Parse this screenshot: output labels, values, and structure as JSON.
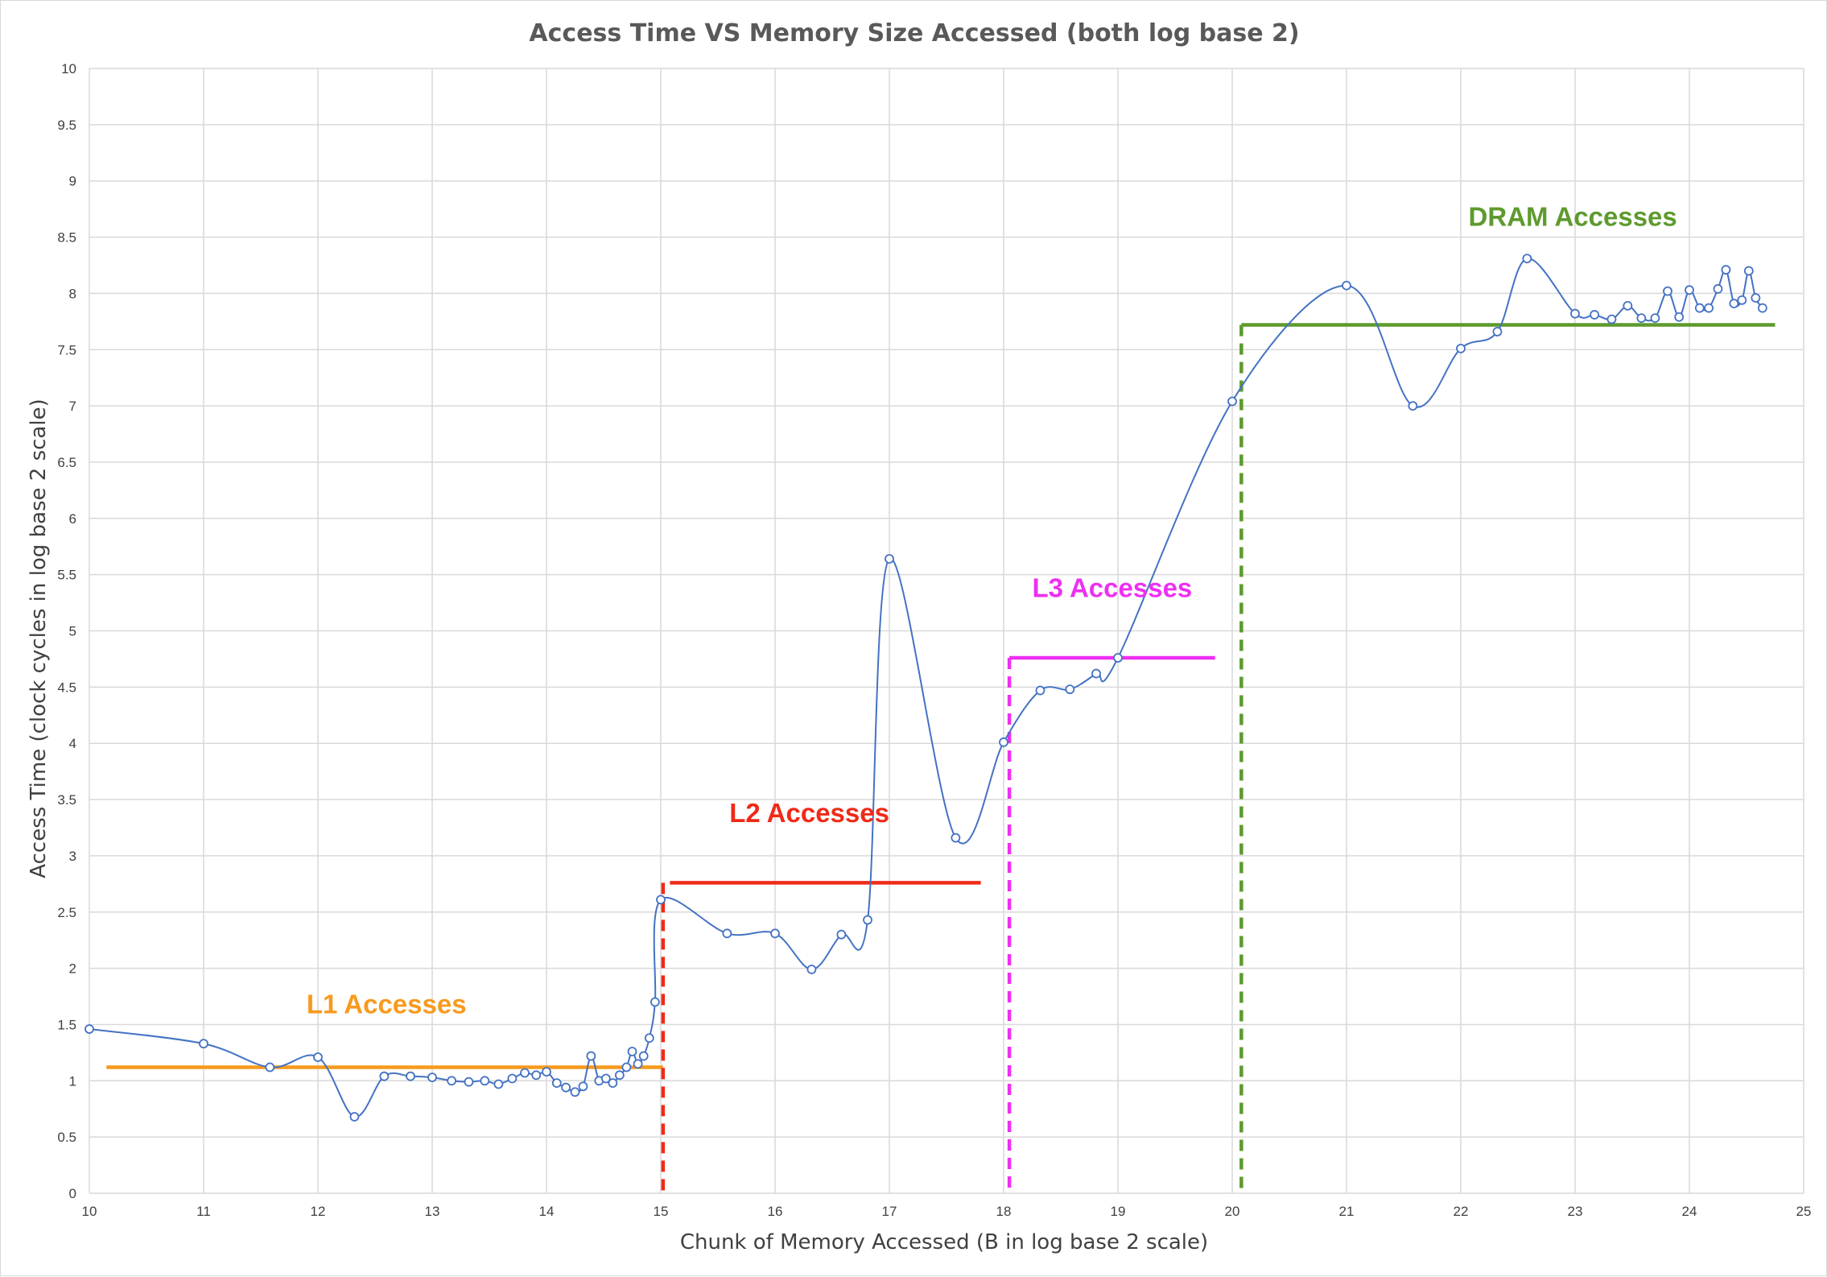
{
  "chart_data": {
    "type": "scatter",
    "title": "Access Time VS Memory Size Accessed (both log base 2)",
    "xlabel": "Chunk of Memory Accessed  (B in log base 2 scale)",
    "ylabel": "Access Time (clock cycles in log base 2 scale)",
    "xlim": [
      10,
      25
    ],
    "ylim": [
      0,
      10
    ],
    "x_ticks": [
      10,
      11,
      12,
      13,
      14,
      15,
      16,
      17,
      18,
      19,
      20,
      21,
      22,
      23,
      24,
      25
    ],
    "y_ticks": [
      0,
      0.5,
      1,
      1.5,
      2,
      2.5,
      3,
      3.5,
      4,
      4.5,
      5,
      5.5,
      6,
      6.5,
      7,
      7.5,
      8,
      8.5,
      9,
      9.5,
      10
    ],
    "y_tick_labels": [
      "0",
      "0.5",
      "1",
      "1.5",
      "2",
      "2.5",
      "3",
      "3.5",
      "4",
      "4.5",
      "5",
      "5.5",
      "6",
      "6.5",
      "7",
      "7.5",
      "8",
      "8.5",
      "9",
      "9.5",
      "10"
    ],
    "grid": true,
    "series": [
      {
        "color": "#4472c4",
        "style": "smooth line with hollow circle markers",
        "x": [
          10,
          11,
          11.58,
          12,
          12.32,
          12.58,
          12.81,
          13,
          13.17,
          13.32,
          13.46,
          13.58,
          13.7,
          13.81,
          13.91,
          14,
          14.09,
          14.17,
          14.25,
          14.32,
          14.39,
          14.46,
          14.52,
          14.58,
          14.64,
          14.7,
          14.75,
          14.8,
          14.85,
          14.9,
          14.95,
          15,
          15.58,
          16,
          16.32,
          16.58,
          16.81,
          17,
          17.58,
          18,
          18.32,
          18.58,
          18.81,
          19,
          20,
          21,
          21.58,
          22,
          22.32,
          22.58,
          23,
          23.17,
          23.32,
          23.46,
          23.58,
          23.7,
          23.81,
          23.91,
          24,
          24.09,
          24.17,
          24.25,
          24.32,
          24.39,
          24.46,
          24.52,
          24.58,
          24.64
        ],
        "y": [
          1.46,
          1.33,
          1.12,
          1.21,
          0.68,
          1.04,
          1.04,
          1.03,
          1.0,
          0.99,
          1.0,
          0.97,
          1.02,
          1.07,
          1.05,
          1.08,
          0.98,
          0.94,
          0.9,
          0.95,
          1.22,
          1.0,
          1.02,
          0.98,
          1.05,
          1.12,
          1.26,
          1.15,
          1.22,
          1.38,
          1.7,
          2.61,
          2.31,
          2.31,
          1.99,
          2.3,
          2.43,
          5.64,
          3.16,
          4.01,
          4.47,
          4.48,
          4.62,
          4.76,
          7.04,
          8.07,
          7.0,
          7.51,
          7.66,
          8.31,
          7.82,
          7.81,
          7.77,
          7.89,
          7.78,
          7.78,
          8.02,
          7.79,
          8.03,
          7.87,
          7.87,
          8.04,
          8.21,
          7.91,
          7.94,
          8.2,
          7.96,
          7.87
        ]
      }
    ],
    "annotations": [
      {
        "text": "L1 Accesses",
        "color": "#f79a1e",
        "x": 12.6,
        "y": 1.6,
        "level": 1.12,
        "x_from": 10.15,
        "x_to": 15.02,
        "boundary": null
      },
      {
        "text": "L2 Accesses",
        "color": "#f02a17",
        "x": 16.3,
        "y": 3.3,
        "level": 2.76,
        "x_from": 15.08,
        "x_to": 17.8,
        "boundary": 15.02
      },
      {
        "text": "L3 Accesses",
        "color": "#ee2ff2",
        "x": 18.95,
        "y": 5.3,
        "level": 4.76,
        "x_from": 18.05,
        "x_to": 19.85,
        "boundary": 18.05
      },
      {
        "text": "DRAM Accesses",
        "color": "#5e9a2e",
        "x": 22.98,
        "y": 8.6,
        "level": 7.72,
        "x_from": 20.08,
        "x_to": 24.75,
        "boundary": 20.08
      }
    ],
    "grid_color": "#d9d9d9"
  }
}
